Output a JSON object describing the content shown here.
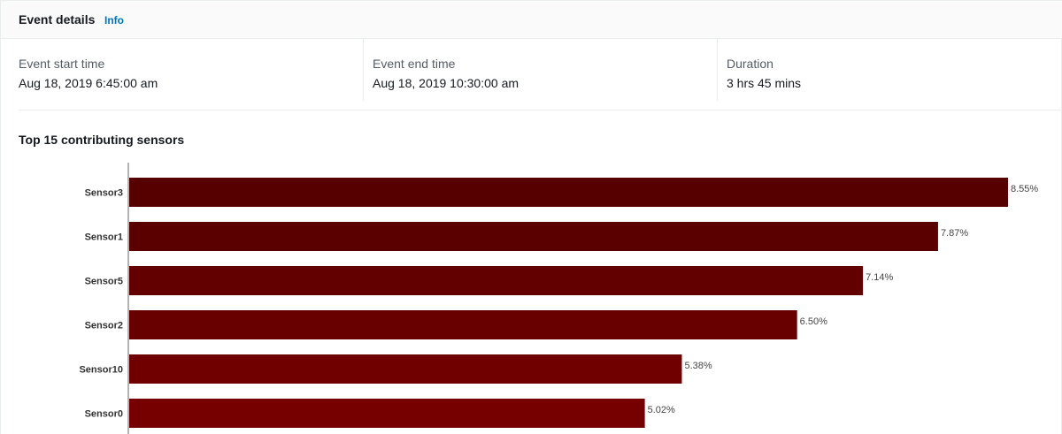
{
  "header": {
    "title": "Event details",
    "info_label": "Info"
  },
  "event": {
    "start_label": "Event start time",
    "start_value": "Aug 18, 2019 6:45:00 am",
    "end_label": "Event end time",
    "end_value": "Aug 18, 2019 10:30:00 am",
    "duration_label": "Duration",
    "duration_value": "3 hrs 45 mins"
  },
  "section": {
    "title": "Top 15 contributing sensors"
  },
  "chart_data": {
    "type": "bar",
    "orientation": "horizontal",
    "title": "Top 15 contributing sensors",
    "categories": [
      "Sensor3",
      "Sensor1",
      "Sensor5",
      "Sensor2",
      "Sensor10",
      "Sensor0"
    ],
    "values": [
      8.55,
      7.87,
      7.14,
      6.5,
      5.38,
      5.02
    ],
    "value_labels": [
      "8.55%",
      "7.87%",
      "7.14%",
      "6.50%",
      "5.38%",
      "5.02%"
    ],
    "unit": "%",
    "xlim": [
      0,
      8.55
    ],
    "grid": false,
    "colors": [
      "#560000",
      "#5a0000",
      "#620000",
      "#690000",
      "#700000",
      "#760000"
    ]
  }
}
